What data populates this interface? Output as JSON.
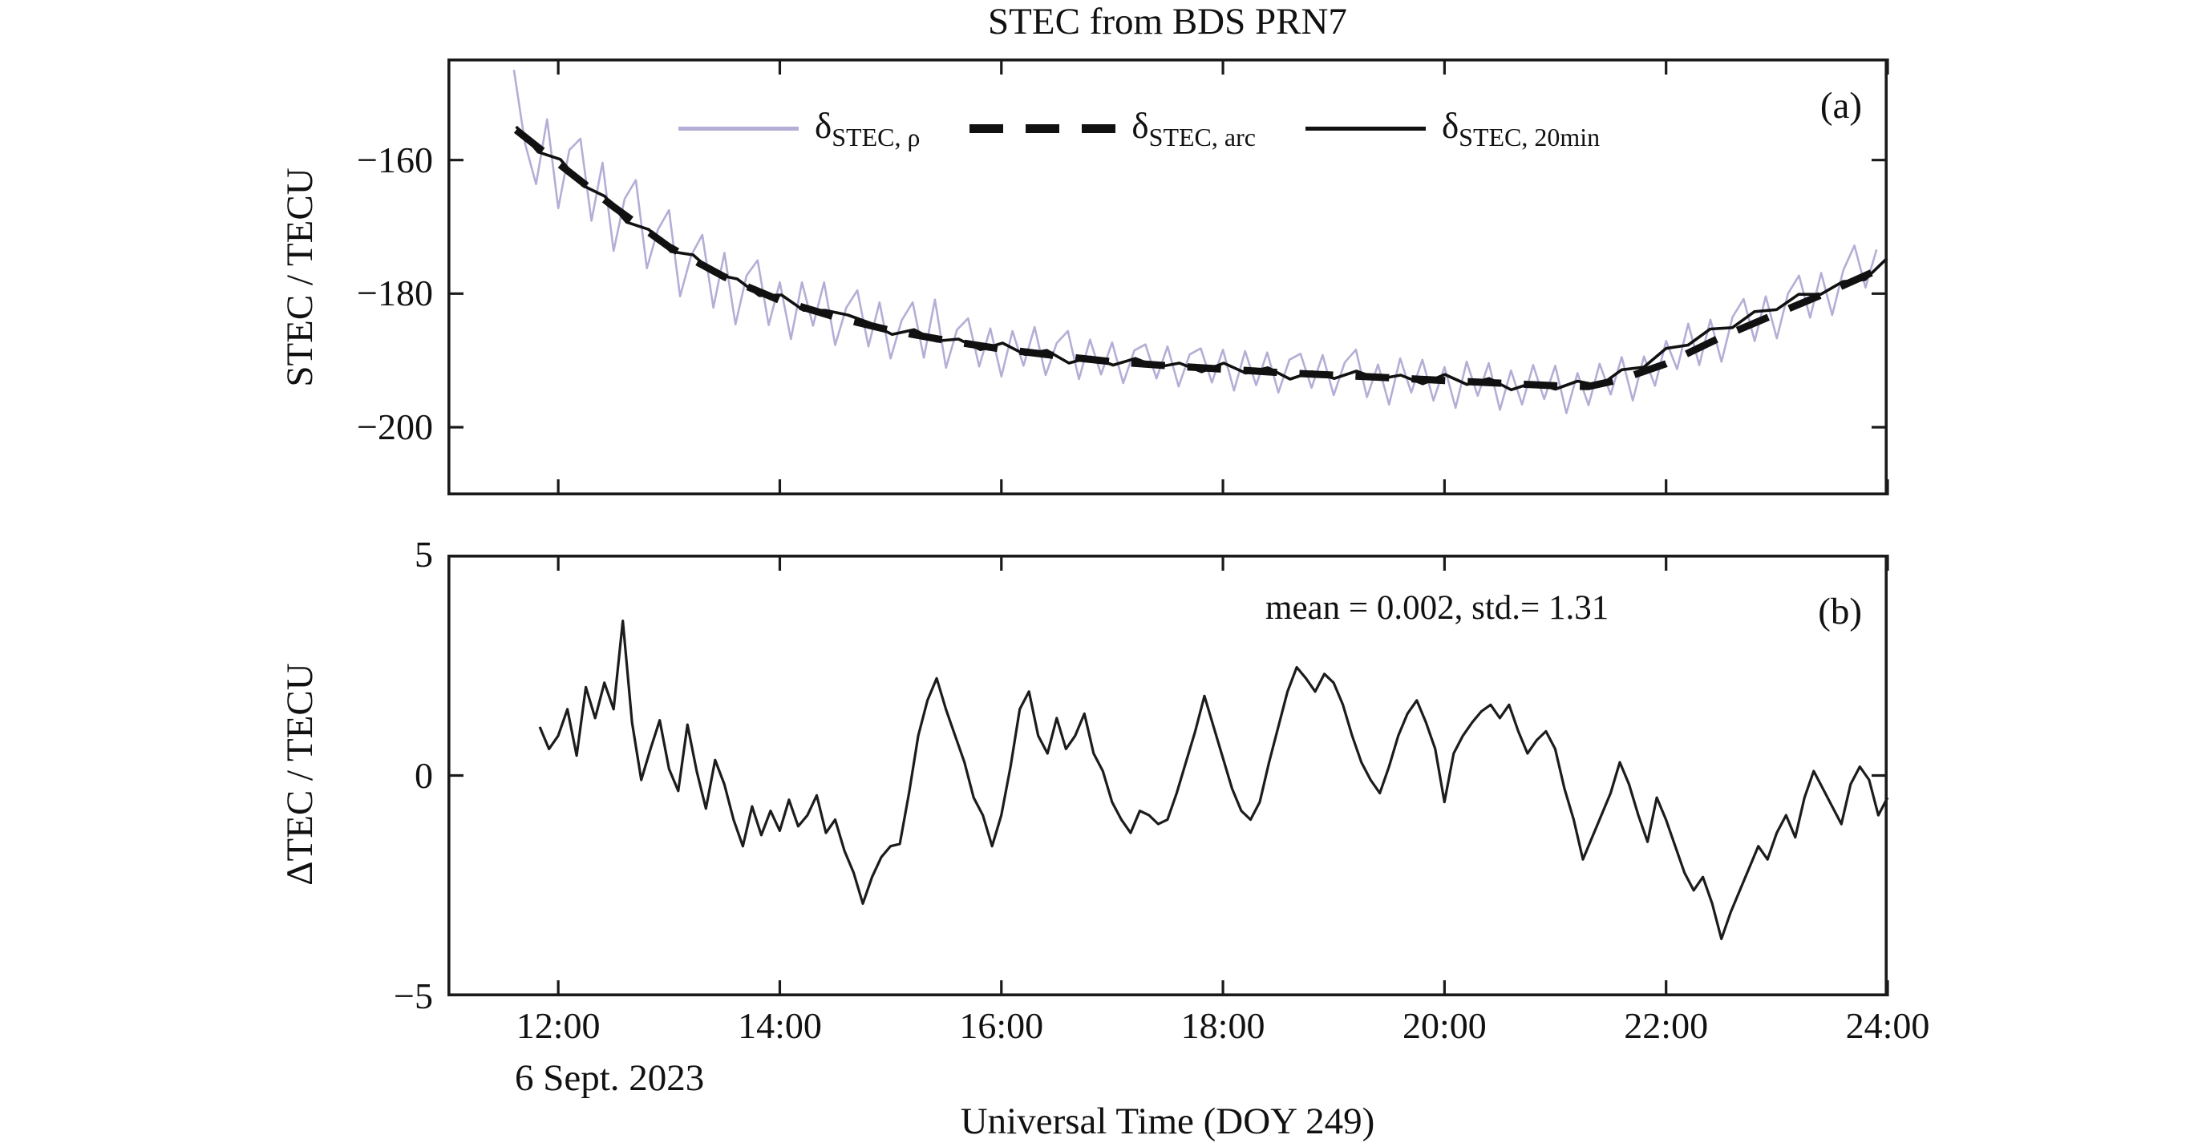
{
  "figure": {
    "title": "STEC from BDS PRN7",
    "xlabel": "Universal Time (DOY 249)",
    "date_annotation": "6 Sept. 2023",
    "frame_color": "#1a1a1a",
    "xlim": [
      11,
      24
    ],
    "xticks": [
      {
        "label": "12:00",
        "hour": 12
      },
      {
        "label": "14:00",
        "hour": 14
      },
      {
        "label": "16:00",
        "hour": 16
      },
      {
        "label": "18:00",
        "hour": 18
      },
      {
        "label": "20:00",
        "hour": 20
      },
      {
        "label": "22:00",
        "hour": 22
      },
      {
        "label": "24:00",
        "hour": 24
      }
    ],
    "panel_a": {
      "label": "(a)",
      "ylabel": "STEC / TECU",
      "ylim": [
        -210.2,
        -144.8
      ],
      "yticks": [
        {
          "label": "−160",
          "value": -160
        },
        {
          "label": "−180",
          "value": -180
        },
        {
          "label": "−200",
          "value": -200
        }
      ]
    },
    "panel_b": {
      "label": "(b)",
      "ylabel": "ΔTEC / TECU",
      "ylim": [
        -5,
        5
      ],
      "annotation": "mean = 0.002, std.= 1.31",
      "yticks": [
        {
          "label": "5",
          "value": 5
        },
        {
          "label": "0",
          "value": 0
        },
        {
          "label": "−5",
          "value": -5
        }
      ]
    }
  },
  "legend": [
    {
      "base": "δ",
      "sub": "STEC, ρ",
      "sample": "lavender-solid",
      "color": "#b3aed6"
    },
    {
      "base": "δ",
      "sub": "STEC, arc",
      "sample": "black-dashed",
      "color": "#111111"
    },
    {
      "base": "δ",
      "sub": "STEC, 20min",
      "sample": "black-solid",
      "color": "#111111"
    }
  ],
  "chart_data": [
    {
      "panel": "a",
      "type": "line",
      "title": "STEC from BDS PRN7",
      "xlabel": "Universal Time (DOY 249)",
      "ylabel": "STEC / TECU",
      "xlim": [
        11,
        24
      ],
      "ylim": [
        -210.2,
        -144.8
      ],
      "grid": false,
      "legend_position": "top-inside",
      "series": [
        {
          "name": "δ_STEC,ρ",
          "style": "solid",
          "color": "#b3aed6",
          "width": 2.6,
          "t0": 11.6,
          "dt": 0.1,
          "values": [
            -146.5,
            -157.5,
            -163.6,
            -153.9,
            -167.2,
            -158.5,
            -156.8,
            -169.1,
            -160.4,
            -173.6,
            -165.8,
            -163.0,
            -176.2,
            -170.4,
            -167.5,
            -180.4,
            -174.3,
            -171.2,
            -182.1,
            -173.9,
            -184.6,
            -177.3,
            -175.0,
            -184.7,
            -178.3,
            -186.8,
            -178.3,
            -184.8,
            -178.3,
            -187.7,
            -182.1,
            -179.5,
            -187.9,
            -181.3,
            -189.7,
            -184.0,
            -181.3,
            -189.6,
            -180.9,
            -191.1,
            -185.4,
            -183.7,
            -190.9,
            -185.2,
            -192.4,
            -185.6,
            -190.8,
            -185.0,
            -192.2,
            -187.4,
            -185.6,
            -192.8,
            -186.9,
            -192.1,
            -187.3,
            -193.4,
            -188.5,
            -187.6,
            -192.7,
            -187.9,
            -193.9,
            -189.1,
            -188.2,
            -193.3,
            -188.4,
            -194.5,
            -188.6,
            -193.7,
            -188.8,
            -194.8,
            -189.9,
            -189.0,
            -194.1,
            -189.2,
            -195.2,
            -190.3,
            -188.4,
            -195.5,
            -190.6,
            -196.6,
            -189.7,
            -194.8,
            -189.9,
            -196.0,
            -191.0,
            -197.1,
            -190.2,
            -195.3,
            -190.4,
            -197.4,
            -191.5,
            -196.6,
            -190.7,
            -195.8,
            -190.8,
            -197.9,
            -191.9,
            -196.7,
            -190.5,
            -195.1,
            -189.5,
            -196.0,
            -189.4,
            -193.8,
            -187.1,
            -191.3,
            -184.5,
            -190.7,
            -183.9,
            -190.2,
            -183.5,
            -180.8,
            -187.1,
            -180.4,
            -186.7,
            -180.0,
            -177.3,
            -183.6,
            -176.9,
            -183.2,
            -176.5,
            -172.8,
            -179.1,
            -173.4
          ]
        },
        {
          "name": "δ_STEC,arc",
          "style": "dashed",
          "color": "#111111",
          "width": 9,
          "dash": [
            42,
            28
          ],
          "points": [
            [
              11.62,
              -155.5
            ],
            [
              12,
              -160.5
            ],
            [
              12.5,
              -167
            ],
            [
              13,
              -173
            ],
            [
              13.5,
              -177.5
            ],
            [
              14,
              -181
            ],
            [
              14.5,
              -183.5
            ],
            [
              15,
              -185.5
            ],
            [
              15.5,
              -187
            ],
            [
              16,
              -188.3
            ],
            [
              16.5,
              -189.3
            ],
            [
              17,
              -190.2
            ],
            [
              17.5,
              -190.8
            ],
            [
              18,
              -191.3
            ],
            [
              18.5,
              -191.8
            ],
            [
              19,
              -192.2
            ],
            [
              19.5,
              -192.6
            ],
            [
              20,
              -193
            ],
            [
              20.5,
              -193.4
            ],
            [
              21,
              -193.8
            ],
            [
              21.3,
              -193.9
            ],
            [
              21.6,
              -192.8
            ],
            [
              22,
              -190.5
            ],
            [
              22.5,
              -186.5
            ],
            [
              23,
              -183
            ],
            [
              23.5,
              -179.5
            ],
            [
              24,
              -175.8
            ]
          ]
        },
        {
          "name": "δ_STEC,20min",
          "style": "solid",
          "color": "#111111",
          "width": 3.6,
          "t0": 11.62,
          "dt": 0.1996,
          "values": [
            -155.0,
            -158.8,
            -159.9,
            -163.8,
            -165.4,
            -169.3,
            -170.4,
            -173.7,
            -174.2,
            -177.1,
            -177.8,
            -180.3,
            -180.2,
            -182.5,
            -182.5,
            -183.2,
            -184.4,
            -186.1,
            -185.4,
            -187.1,
            -186.8,
            -188.4,
            -187.4,
            -189.1,
            -188.5,
            -190.4,
            -189.5,
            -190.7,
            -189.7,
            -191.0,
            -190.4,
            -191.7,
            -190.4,
            -191.9,
            -191.1,
            -192.8,
            -191.7,
            -192.7,
            -191.6,
            -192.8,
            -192.2,
            -193.5,
            -192.1,
            -193.6,
            -192.7,
            -194.4,
            -193.3,
            -194.3,
            -193.1,
            -193.8,
            -191.4,
            -191.0,
            -188.2,
            -187.7,
            -185.3,
            -185.1,
            -182.7,
            -182.4,
            -180.1,
            -180.1,
            -178.2,
            -177.9,
            -174.7
          ]
        }
      ]
    },
    {
      "panel": "b",
      "type": "line",
      "title": "",
      "xlabel": "Universal Time (DOY 249)",
      "ylabel": "ΔTEC / TECU",
      "xlim": [
        11,
        24
      ],
      "ylim": [
        -5,
        5
      ],
      "grid": false,
      "stats": {
        "mean": 0.002,
        "std": 1.31
      },
      "series": [
        {
          "name": "ΔTEC",
          "style": "solid",
          "color": "#1c1c1c",
          "width": 3.2,
          "t0": 11.833,
          "dt": 0.08333,
          "values": [
            1.1,
            0.6,
            0.9,
            1.5,
            0.45,
            2.0,
            1.3,
            2.1,
            1.5,
            3.5,
            1.2,
            -0.1,
            0.6,
            1.25,
            0.15,
            -0.35,
            1.15,
            0.1,
            -0.75,
            0.35,
            -0.2,
            -1.0,
            -1.6,
            -0.7,
            -1.35,
            -0.8,
            -1.25,
            -0.55,
            -1.15,
            -0.9,
            -0.45,
            -1.3,
            -1.0,
            -1.7,
            -2.2,
            -2.9,
            -2.3,
            -1.85,
            -1.6,
            -1.55,
            -0.4,
            0.9,
            1.7,
            2.2,
            1.5,
            0.9,
            0.3,
            -0.5,
            -0.9,
            -1.6,
            -0.9,
            0.2,
            1.5,
            1.9,
            0.9,
            0.5,
            1.3,
            0.6,
            0.9,
            1.4,
            0.5,
            0.1,
            -0.6,
            -1.0,
            -1.3,
            -0.8,
            -0.9,
            -1.1,
            -1.0,
            -0.4,
            0.3,
            1.0,
            1.8,
            1.1,
            0.4,
            -0.3,
            -0.8,
            -1.0,
            -0.6,
            0.3,
            1.1,
            1.9,
            2.45,
            2.2,
            1.9,
            2.3,
            2.1,
            1.6,
            0.9,
            0.3,
            -0.1,
            -0.4,
            0.2,
            0.9,
            1.4,
            1.7,
            1.2,
            0.6,
            -0.6,
            0.5,
            0.9,
            1.2,
            1.45,
            1.6,
            1.3,
            1.6,
            1.0,
            0.5,
            0.8,
            1.0,
            0.6,
            -0.3,
            -1.0,
            -1.9,
            -1.4,
            -0.9,
            -0.4,
            0.3,
            -0.2,
            -0.9,
            -1.5,
            -0.5,
            -1.0,
            -1.6,
            -2.2,
            -2.6,
            -2.3,
            -2.9,
            -3.7,
            -3.1,
            -2.6,
            -2.1,
            -1.6,
            -1.9,
            -1.3,
            -0.9,
            -1.4,
            -0.5,
            0.1,
            -0.3,
            -0.7,
            -1.1,
            -0.2,
            0.2,
            -0.1,
            -0.9,
            -0.5
          ]
        }
      ]
    }
  ]
}
